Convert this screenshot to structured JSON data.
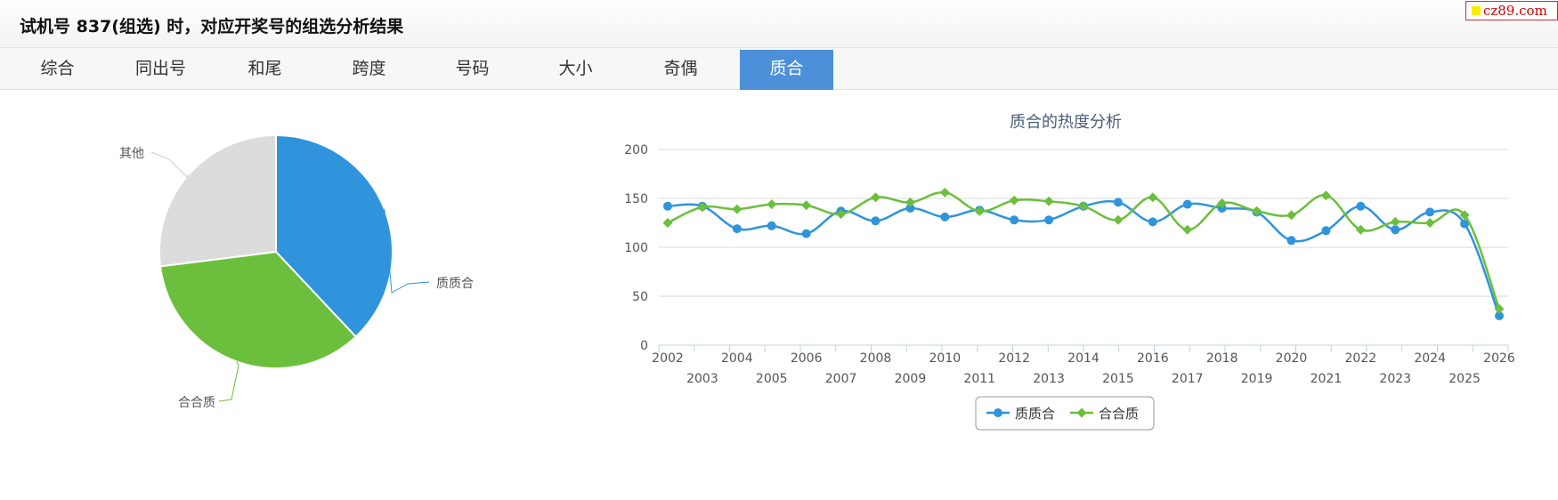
{
  "header": {
    "title": "试机号 837(组选) 时，对应开奖号的组选分析结果"
  },
  "logo": {
    "text": "cz89.com"
  },
  "tabs": [
    {
      "label": "综合"
    },
    {
      "label": "同出号"
    },
    {
      "label": "和尾"
    },
    {
      "label": "跨度"
    },
    {
      "label": "号码"
    },
    {
      "label": "大小"
    },
    {
      "label": "奇偶"
    },
    {
      "label": "质合"
    }
  ],
  "active_tab": 7,
  "chart_data": [
    {
      "type": "pie",
      "slices": [
        {
          "label": "质质合",
          "value": 38,
          "color": "#2f94db"
        },
        {
          "label": "合合质",
          "value": 35,
          "color": "#6cbf3c"
        },
        {
          "label": "其他",
          "value": 27,
          "color": "#dcdcdc"
        }
      ]
    },
    {
      "type": "line",
      "title": "质合的热度分析",
      "x": [
        "2002",
        "2003",
        "2004",
        "2005",
        "2006",
        "2007",
        "2008",
        "2009",
        "2010",
        "2011",
        "2012",
        "2013",
        "2014",
        "2015",
        "2016",
        "2017",
        "2018",
        "2019",
        "2020",
        "2021",
        "2022",
        "2023",
        "2024",
        "2025",
        "2026"
      ],
      "ylim": [
        0,
        200
      ],
      "yticks": [
        0,
        50,
        100,
        150,
        200
      ],
      "grid": true,
      "legend": "bottom-center",
      "series": [
        {
          "name": "质质合",
          "color": "#2f94db",
          "marker": "circle",
          "values": [
            142,
            142,
            119,
            122,
            114,
            137,
            127,
            140,
            131,
            138,
            128,
            128,
            142,
            146,
            126,
            144,
            140,
            136,
            107,
            117,
            142,
            118,
            136,
            124,
            30
          ]
        },
        {
          "name": "合合质",
          "color": "#6cbf3c",
          "marker": "diamond",
          "values": [
            125,
            141,
            139,
            144,
            143,
            134,
            151,
            146,
            156,
            137,
            148,
            147,
            142,
            128,
            151,
            118,
            145,
            137,
            133,
            153,
            118,
            126,
            125,
            133,
            37
          ]
        }
      ]
    }
  ]
}
